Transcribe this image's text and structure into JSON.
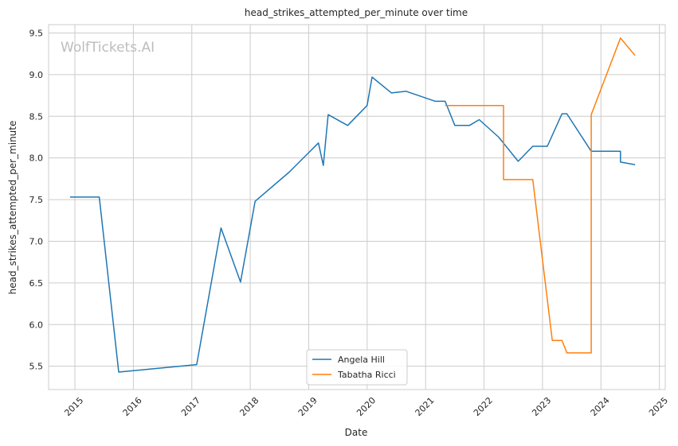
{
  "chart_data": {
    "type": "line",
    "title": "head_strikes_attempted_per_minute over time",
    "xlabel": "Date",
    "ylabel": "head_strikes_attempted_per_minute",
    "watermark": "WolfTickets.AI",
    "xlim": [
      2014.55,
      2025.1
    ],
    "ylim": [
      5.22,
      9.6
    ],
    "x_ticks": [
      "2015",
      "2016",
      "2017",
      "2018",
      "2019",
      "2020",
      "2021",
      "2022",
      "2023",
      "2024",
      "2025"
    ],
    "y_ticks": [
      "5.5",
      "6.0",
      "6.5",
      "7.0",
      "7.5",
      "8.0",
      "8.5",
      "9.0",
      "9.5"
    ],
    "grid": true,
    "legend_position": "lower-center",
    "series": [
      {
        "name": "Angela Hill",
        "color": "#1f77b4",
        "points": [
          [
            "2014-12",
            7.53
          ],
          [
            "2015-06",
            7.53
          ],
          [
            "2015-10",
            5.43
          ],
          [
            "2017-02",
            5.52
          ],
          [
            "2017-07",
            7.16
          ],
          [
            "2017-11",
            6.51
          ],
          [
            "2018-02",
            7.48
          ],
          [
            "2018-09",
            7.83
          ],
          [
            "2019-03",
            8.18
          ],
          [
            "2019-04",
            7.91
          ],
          [
            "2019-05",
            8.52
          ],
          [
            "2019-09",
            8.39
          ],
          [
            "2020-01",
            8.63
          ],
          [
            "2020-02",
            8.97
          ],
          [
            "2020-06",
            8.78
          ],
          [
            "2020-09",
            8.8
          ],
          [
            "2021-03",
            8.68
          ],
          [
            "2021-05",
            8.68
          ],
          [
            "2021-07",
            8.39
          ],
          [
            "2021-10",
            8.39
          ],
          [
            "2021-12",
            8.46
          ],
          [
            "2022-04",
            8.25
          ],
          [
            "2022-08",
            7.96
          ],
          [
            "2022-11",
            8.14
          ],
          [
            "2023-02",
            8.14
          ],
          [
            "2023-05",
            8.53
          ],
          [
            "2023-06",
            8.53
          ],
          [
            "2023-11",
            8.08
          ],
          [
            "2024-05",
            8.08
          ],
          [
            "2024-05",
            7.95
          ],
          [
            "2024-08",
            7.92
          ]
        ]
      },
      {
        "name": "Tabatha Ricci",
        "color": "#ff7f0e",
        "points": [
          [
            "2021-05",
            8.63
          ],
          [
            "2022-05",
            8.63
          ],
          [
            "2022-05",
            7.74
          ],
          [
            "2022-11",
            7.74
          ],
          [
            "2023-03",
            5.81
          ],
          [
            "2023-05",
            5.81
          ],
          [
            "2023-06",
            5.66
          ],
          [
            "2023-11",
            5.66
          ],
          [
            "2023-11",
            8.52
          ],
          [
            "2024-05",
            9.44
          ],
          [
            "2024-08",
            9.23
          ]
        ]
      }
    ]
  }
}
